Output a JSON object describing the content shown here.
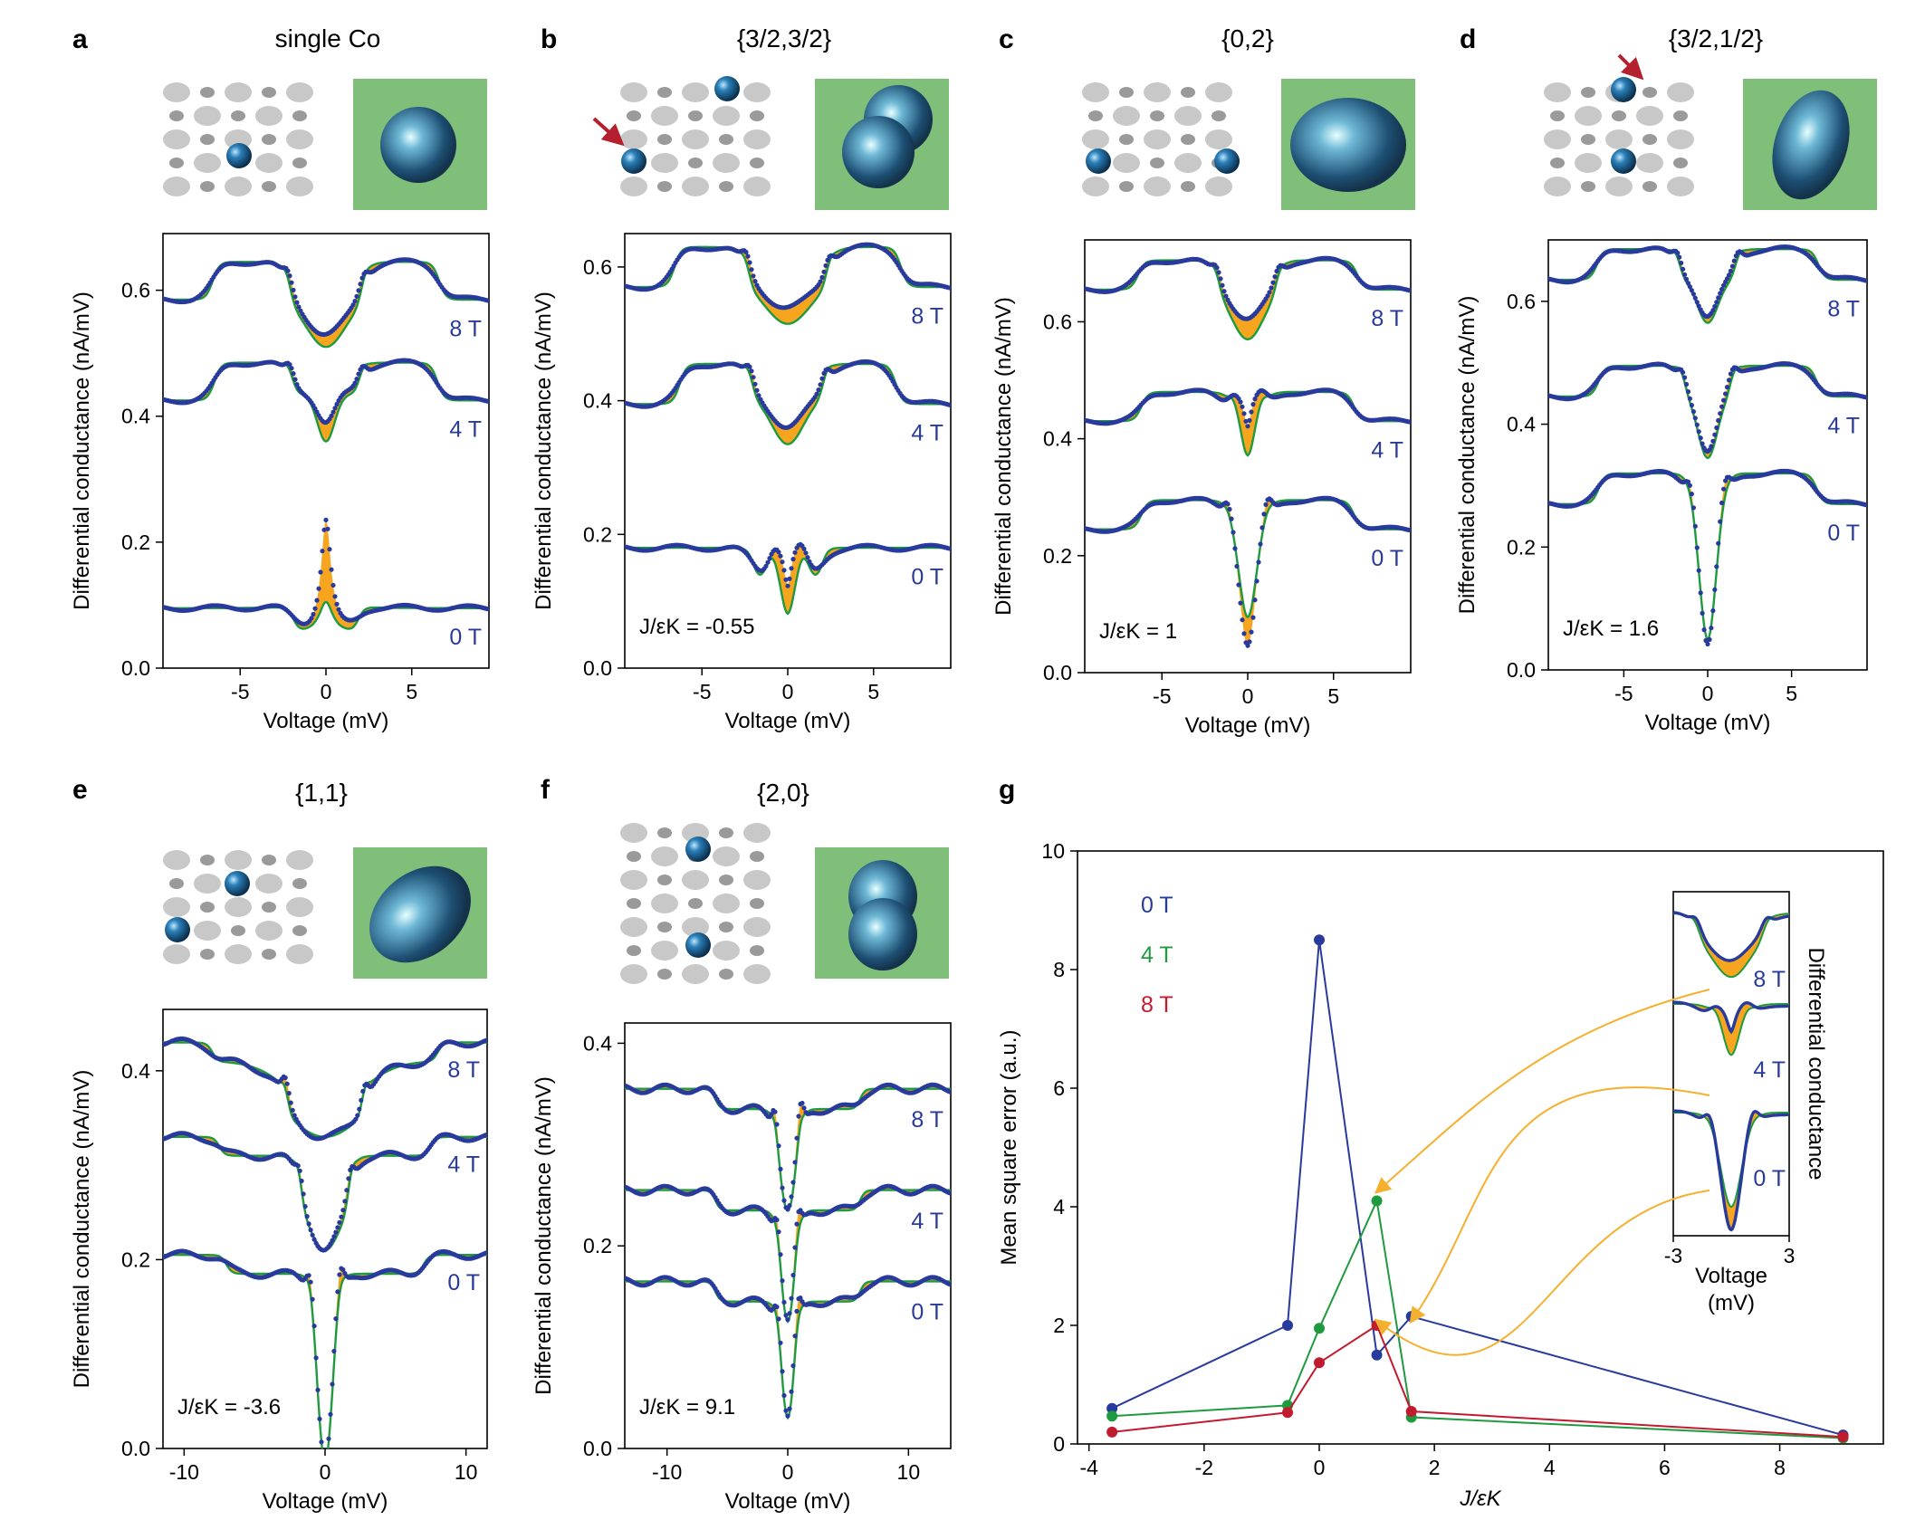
{
  "colors": {
    "data": "#283a9c",
    "fit": "#1f9a3f",
    "diff": "#f7a51e",
    "mse_0T": "#283a9c",
    "mse_4T": "#1f9a3f",
    "mse_8T": "#c21a2e",
    "arrow": "#f5b030",
    "substrate": "#bdbdbd",
    "atom": "#1a5f8a",
    "stm_bg": "#7fbf7a"
  },
  "common": {
    "xlabel": "Voltage (mV)",
    "ylabel": "Differential conductance (nA/mV)",
    "fields": [
      "0 T",
      "4 T",
      "8 T"
    ]
  },
  "chart_data": [
    {
      "id": "a",
      "type": "line",
      "label": "a",
      "title": "single Co",
      "ratio_text": "",
      "xlim": [
        -9.5,
        9.5
      ],
      "ylim": [
        0,
        0.69
      ],
      "xticks": [
        "-5",
        "0",
        "5"
      ],
      "xtick_values": [
        -5,
        0,
        5
      ],
      "yticks": [
        "0.0",
        "0.2",
        "0.4",
        "0.6"
      ],
      "ytick_values": [
        0,
        0.2,
        0.4,
        0.6
      ],
      "series": [
        {
          "name": "0 T",
          "offset": 0.095,
          "kind": "peak",
          "w": 0.35,
          "step_in": [
            -1.9,
            -0.04
          ],
          "step_out": [
            -6.0,
            0.0
          ],
          "data_amp": 0.18,
          "fit_amp": 0.05
        },
        {
          "name": "4 T",
          "offset": 0.425,
          "kind": "dip",
          "w": 0.5,
          "step_in": [
            -2.1,
            -0.05
          ],
          "step_out": [
            -6.5,
            0.06
          ],
          "data_amp": -0.045,
          "fit_amp": -0.075
        },
        {
          "name": "8 T",
          "offset": 0.585,
          "kind": "dip",
          "w": 1.1,
          "step_in": [
            -2.2,
            -0.06
          ],
          "step_out": [
            -6.6,
            0.06
          ],
          "data_amp": -0.055,
          "fit_amp": -0.075
        }
      ]
    },
    {
      "id": "b",
      "type": "line",
      "label": "b",
      "title": "{3/2,3/2}",
      "ratio_text": "J/εK = -0.55",
      "xlim": [
        -9.5,
        9.5
      ],
      "ylim": [
        0,
        0.65
      ],
      "xticks": [
        "-5",
        "0",
        "5"
      ],
      "xtick_values": [
        -5,
        0,
        5
      ],
      "yticks": [
        "0.0",
        "0.2",
        "0.4",
        "0.6"
      ],
      "ytick_values": [
        0,
        0.2,
        0.4,
        0.6
      ],
      "series": [
        {
          "name": "0 T",
          "offset": 0.18,
          "kind": "split",
          "w": 0.35,
          "step_in": [
            -2.0,
            -0.05
          ],
          "step_out": [
            -6.0,
            0.0
          ],
          "data_amp": 0.05,
          "fit_amp": -0.05
        },
        {
          "name": "4 T",
          "offset": 0.395,
          "kind": "dip",
          "w": 0.9,
          "step_in": [
            -2.2,
            -0.05
          ],
          "step_out": [
            -6.3,
            0.06
          ],
          "data_amp": -0.045,
          "fit_amp": -0.07
        },
        {
          "name": "8 T",
          "offset": 0.57,
          "kind": "dip",
          "w": 1.3,
          "step_in": [
            -2.4,
            -0.05
          ],
          "step_out": [
            -6.6,
            0.06
          ],
          "data_amp": -0.04,
          "fit_amp": -0.065
        }
      ]
    },
    {
      "id": "c",
      "type": "line",
      "label": "c",
      "title": "{0,2}",
      "ratio_text": "J/εK = 1",
      "xlim": [
        -9.5,
        9.5
      ],
      "ylim": [
        0,
        0.74
      ],
      "xticks": [
        "-5",
        "0",
        "5"
      ],
      "xtick_values": [
        -5,
        0,
        5
      ],
      "yticks": [
        "0.0",
        "0.2",
        "0.4",
        "0.6"
      ],
      "ytick_values": [
        0,
        0.2,
        0.4,
        0.6
      ],
      "series": [
        {
          "name": "0 T",
          "offset": 0.245,
          "kind": "dipdeep",
          "w": 0.45,
          "step_in": [
            -1.3,
            -0.05
          ],
          "step_out": [
            -6.2,
            0.05
          ],
          "data_amp": -0.2,
          "fit_amp": -0.15
        },
        {
          "name": "4 T",
          "offset": 0.43,
          "kind": "split",
          "w": 0.5,
          "step_in": [
            -1.3,
            -0.05
          ],
          "step_out": [
            -6.2,
            0.05
          ],
          "data_amp": 0.04,
          "fit_amp": -0.06
        },
        {
          "name": "8 T",
          "offset": 0.655,
          "kind": "dip",
          "w": 0.9,
          "step_in": [
            -1.8,
            -0.05
          ],
          "step_out": [
            -6.4,
            0.05
          ],
          "data_amp": -0.05,
          "fit_amp": -0.085
        }
      ]
    },
    {
      "id": "d",
      "type": "line",
      "label": "d",
      "title": "{3/2,1/2}",
      "ratio_text": "J/εK = 1.6",
      "xlim": [
        -9.5,
        9.5
      ],
      "ylim": [
        0,
        0.7
      ],
      "xticks": [
        "-5",
        "0",
        "5"
      ],
      "xtick_values": [
        -5,
        0,
        5
      ],
      "yticks": [
        "0.0",
        "0.2",
        "0.4",
        "0.6"
      ],
      "ytick_values": [
        0,
        0.2,
        0.4,
        0.6
      ],
      "series": [
        {
          "name": "0 T",
          "offset": 0.27,
          "kind": "dipdeep",
          "w": 0.45,
          "step_in": [
            -1.2,
            -0.06
          ],
          "step_out": [
            -6.5,
            0.05
          ],
          "data_amp": -0.22,
          "fit_amp": -0.21
        },
        {
          "name": "4 T",
          "offset": 0.445,
          "kind": "dip",
          "w": 0.55,
          "step_in": [
            -1.5,
            -0.05
          ],
          "step_out": [
            -6.5,
            0.05
          ],
          "data_amp": -0.09,
          "fit_amp": -0.1
        },
        {
          "name": "8 T",
          "offset": 0.635,
          "kind": "dip",
          "w": 0.6,
          "step_in": [
            -1.8,
            -0.05
          ],
          "step_out": [
            -6.6,
            0.05
          ],
          "data_amp": -0.06,
          "fit_amp": -0.07
        }
      ]
    },
    {
      "id": "e",
      "type": "line",
      "label": "e",
      "title": "{1,1}",
      "ratio_text": "J/εK = -3.6",
      "xlim": [
        -11.5,
        11.5
      ],
      "ylim": [
        0,
        0.465
      ],
      "xticks": [
        "-10",
        "0",
        "10"
      ],
      "xtick_values": [
        -10,
        0,
        10
      ],
      "yticks": [
        "0.0",
        "0.2",
        "0.4"
      ],
      "ytick_values": [
        0,
        0.2,
        0.4
      ],
      "series": [
        {
          "name": "0 T",
          "offset": 0.205,
          "kind": "dipdeep",
          "w": 0.5,
          "step_in": [
            -1.2,
            -0.03
          ],
          "step_out": [
            -7.0,
            -0.02
          ],
          "data_amp": -0.17,
          "fit_amp": -0.17
        },
        {
          "name": "4 T",
          "offset": 0.33,
          "kind": "dip",
          "w": 1.0,
          "step_in": [
            -1.8,
            -0.05
          ],
          "step_out": [
            -7.5,
            -0.02
          ],
          "data_amp": -0.05,
          "fit_amp": -0.05
        },
        {
          "name": "8 T",
          "offset": 0.43,
          "kind": "dip",
          "w": 2.5,
          "step_in": [
            -2.8,
            -0.03
          ],
          "step_out": [
            -8.0,
            -0.02
          ],
          "data_amp": -0.05,
          "fit_amp": -0.05
        }
      ]
    },
    {
      "id": "f",
      "type": "line",
      "label": "f",
      "title": "{2,0}",
      "ratio_text": "J/εK = 9.1",
      "xlim": [
        -13.5,
        13.5
      ],
      "ylim": [
        0,
        0.42
      ],
      "xticks": [
        "-10",
        "0",
        "10"
      ],
      "xtick_values": [
        -10,
        0,
        10
      ],
      "yticks": [
        "0.0",
        "0.2",
        "0.4"
      ],
      "ytick_values": [
        0,
        0.2,
        0.4
      ],
      "series": [
        {
          "name": "0 T",
          "offset": 0.165,
          "kind": "dipdeep",
          "w": 0.5,
          "step_in": [
            -1.0,
            -0.03
          ],
          "step_out": [
            -6.0,
            -0.02
          ],
          "data_amp": -0.085,
          "fit_amp": -0.085
        },
        {
          "name": "4 T",
          "offset": 0.255,
          "kind": "dipdeep",
          "w": 0.55,
          "step_in": [
            -1.0,
            -0.03
          ],
          "step_out": [
            -6.0,
            -0.02
          ],
          "data_amp": -0.08,
          "fit_amp": -0.08
        },
        {
          "name": "8 T",
          "offset": 0.355,
          "kind": "dipdeep",
          "w": 0.6,
          "step_in": [
            -1.2,
            -0.03
          ],
          "step_out": [
            -6.0,
            -0.02
          ],
          "data_amp": -0.07,
          "fit_amp": -0.07
        }
      ]
    },
    {
      "id": "g",
      "type": "line",
      "label": "g",
      "title": "",
      "xlabel": "J/εK",
      "ylabel": "Mean square error  (a.u.)",
      "xlim": [
        -4.2,
        9.8
      ],
      "ylim": [
        0,
        10
      ],
      "xticks": [
        "-4",
        "-2",
        "0",
        "2",
        "4",
        "6",
        "8"
      ],
      "xtick_values": [
        -4,
        -2,
        0,
        2,
        4,
        6,
        8
      ],
      "yticks": [
        "0",
        "2",
        "4",
        "6",
        "8",
        "10"
      ],
      "ytick_values": [
        0,
        2,
        4,
        6,
        8,
        10
      ],
      "x": [
        -3.6,
        -0.55,
        0,
        1,
        1.6,
        9.1
      ],
      "series": [
        {
          "name": "0 T",
          "values": [
            0.6,
            2.0,
            8.5,
            1.5,
            2.15,
            0.15
          ]
        },
        {
          "name": "4 T",
          "values": [
            0.47,
            0.65,
            1.95,
            4.1,
            0.45,
            0.1
          ]
        },
        {
          "name": "8 T",
          "values": [
            0.2,
            0.53,
            1.37,
            2.0,
            0.55,
            0.12
          ]
        }
      ],
      "legend": [
        "0 T",
        "4 T",
        "8 T"
      ],
      "inset": {
        "xlim": [
          -3,
          3
        ],
        "xticks": [
          "-3",
          "3"
        ],
        "xlabel_line1": "Voltage",
        "xlabel_line2": "(mV)",
        "ylabel": "Differential conductance",
        "fields": [
          "0 T",
          "4 T",
          "8 T"
        ]
      }
    }
  ]
}
